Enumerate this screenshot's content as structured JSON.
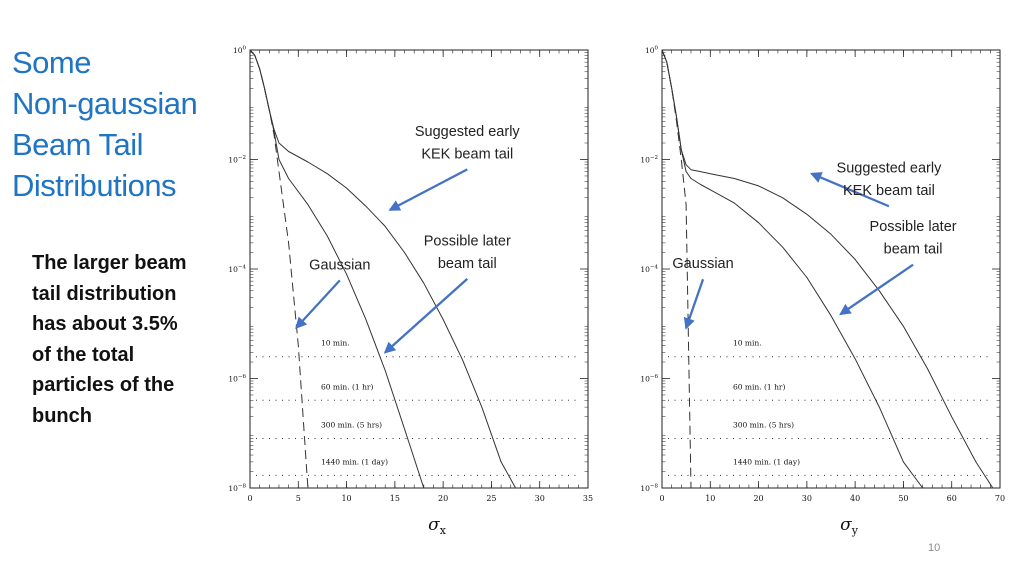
{
  "slide": {
    "title_lines": [
      "Some",
      "Non-gaussian",
      "Beam Tail",
      "Distributions"
    ],
    "body_lines": [
      "The larger beam",
      "tail distribution",
      "has about 3.5%",
      "of the total",
      "particles of the",
      "bunch"
    ],
    "page_number": "10",
    "title_color": "#1f74c4",
    "arrow_color": "#4472c4"
  },
  "chart_data": [
    {
      "type": "line",
      "log_y": true,
      "xlim": [
        0,
        35
      ],
      "ylim": [
        1e-08,
        1
      ],
      "x_ticks": [
        0,
        5,
        10,
        15,
        20,
        25,
        30,
        35
      ],
      "y_ticks": [
        {
          "value": 1,
          "base": "10",
          "exp": "0"
        },
        {
          "value": 0.01,
          "base": "10",
          "exp": "−2"
        },
        {
          "value": 0.0001,
          "base": "10",
          "exp": "−4"
        },
        {
          "value": 1e-06,
          "base": "10",
          "exp": "−6"
        },
        {
          "value": 1e-08,
          "base": "10",
          "exp": "−8"
        }
      ],
      "xlabel_symbol": "σ",
      "xlabel_subscript": "x",
      "grid": false,
      "series": [
        {
          "style": "dashed",
          "x": [
            0,
            0.5,
            1,
            1.5,
            2,
            2.5,
            3,
            4,
            5,
            6
          ],
          "y": [
            1,
            0.8,
            0.45,
            0.2,
            0.08,
            0.028,
            0.006,
            0.0003,
            4e-06,
            1e-08
          ]
        },
        {
          "style": "solid",
          "x": [
            0,
            0.5,
            1,
            1.5,
            2,
            2.5,
            3,
            4,
            6,
            8,
            10,
            12,
            14,
            16,
            18
          ],
          "y": [
            1,
            0.8,
            0.45,
            0.2,
            0.08,
            0.032,
            0.01,
            0.0045,
            0.0015,
            0.0004,
            8e-05,
            1.2e-05,
            1.4e-06,
            1.2e-07,
            1e-08
          ]
        },
        {
          "style": "solid",
          "x": [
            0,
            0.5,
            1,
            1.5,
            2,
            2.5,
            3,
            4,
            6,
            8,
            10,
            12,
            14,
            16,
            18,
            20,
            22,
            24,
            26,
            27.5
          ],
          "y": [
            1,
            0.8,
            0.45,
            0.2,
            0.08,
            0.035,
            0.02,
            0.014,
            0.009,
            0.0055,
            0.003,
            0.0014,
            0.0006,
            0.0002,
            5.5e-05,
            1.2e-05,
            2.2e-06,
            3e-07,
            3e-08,
            1e-08
          ]
        }
      ],
      "reference_lines": [
        {
          "label": "10 min.",
          "y": 2.5e-06
        },
        {
          "label": "60 min. (1 hr)",
          "y": 4e-07
        },
        {
          "label": "300 min. (5 hrs)",
          "y": 8e-08
        },
        {
          "label": "1440 min. (1 day)",
          "y": 1.7e-08
        }
      ],
      "annotations": [
        {
          "lines": [
            "Suggested early",
            "KEK beam tail"
          ],
          "target": [
            14.5,
            0.0012
          ],
          "tail": [
            22.5,
            0.0066
          ]
        },
        {
          "lines": [
            "Possible later",
            "beam tail"
          ],
          "target": [
            14,
            3e-06
          ],
          "tail": [
            22.5,
            6.6e-05
          ]
        },
        {
          "lines": [
            "Gaussian"
          ],
          "target": [
            4.8,
            8.5e-06
          ],
          "tail": [
            9.3,
            6.2e-05
          ]
        }
      ]
    },
    {
      "type": "line",
      "log_y": true,
      "xlim": [
        0,
        70
      ],
      "ylim": [
        1e-08,
        1
      ],
      "x_ticks": [
        0,
        10,
        20,
        30,
        40,
        50,
        60,
        70
      ],
      "y_ticks": [
        {
          "value": 1,
          "base": "10",
          "exp": "0"
        },
        {
          "value": 0.01,
          "base": "10",
          "exp": "−2"
        },
        {
          "value": 0.0001,
          "base": "10",
          "exp": "−4"
        },
        {
          "value": 1e-06,
          "base": "10",
          "exp": "−6"
        },
        {
          "value": 1e-08,
          "base": "10",
          "exp": "−8"
        }
      ],
      "xlabel_symbol": "σ",
      "xlabel_subscript": "y",
      "grid": false,
      "series": [
        {
          "style": "dashed",
          "x": [
            0,
            1,
            2,
            3,
            4,
            5,
            6
          ],
          "y": [
            1,
            0.6,
            0.2,
            0.05,
            0.01,
            0.0015,
            1e-08
          ]
        },
        {
          "style": "solid",
          "x": [
            0,
            1,
            2,
            3,
            4,
            5,
            6,
            8,
            10,
            15,
            20,
            25,
            30,
            35,
            40,
            45,
            50,
            54
          ],
          "y": [
            1,
            0.6,
            0.2,
            0.06,
            0.015,
            0.006,
            0.0045,
            0.0035,
            0.0028,
            0.0016,
            0.0007,
            0.00025,
            7e-05,
            1.4e-05,
            2.3e-06,
            3e-07,
            3e-08,
            1e-08
          ]
        },
        {
          "style": "solid",
          "x": [
            0,
            1,
            2,
            3,
            4,
            5,
            6,
            8,
            10,
            15,
            20,
            25,
            30,
            35,
            40,
            45,
            50,
            55,
            60,
            65,
            68.5
          ],
          "y": [
            1,
            0.6,
            0.2,
            0.06,
            0.015,
            0.008,
            0.0065,
            0.006,
            0.0055,
            0.0045,
            0.0033,
            0.002,
            0.001,
            0.00043,
            0.00015,
            4e-05,
            9e-06,
            1.5e-06,
            2e-07,
            3e-08,
            1e-08
          ]
        }
      ],
      "reference_lines": [
        {
          "label": "10 min.",
          "y": 2.5e-06
        },
        {
          "label": "60 min. (1 hr)",
          "y": 4e-07
        },
        {
          "label": "300 min. (5 hrs)",
          "y": 8e-08
        },
        {
          "label": "1440 min. (1 day)",
          "y": 1.7e-08
        }
      ],
      "annotations": [
        {
          "lines": [
            "Suggested early",
            "KEK beam tail"
          ],
          "target": [
            31,
            0.0055
          ],
          "tail": [
            47,
            0.0014
          ]
        },
        {
          "lines": [
            "Possible later",
            "beam tail"
          ],
          "target": [
            37,
            1.5e-05
          ],
          "tail": [
            52,
            0.00012
          ]
        },
        {
          "lines": [
            "Gaussian"
          ],
          "target": [
            5,
            8.4e-06
          ],
          "tail": [
            8.5,
            6.5e-05
          ]
        }
      ]
    }
  ]
}
